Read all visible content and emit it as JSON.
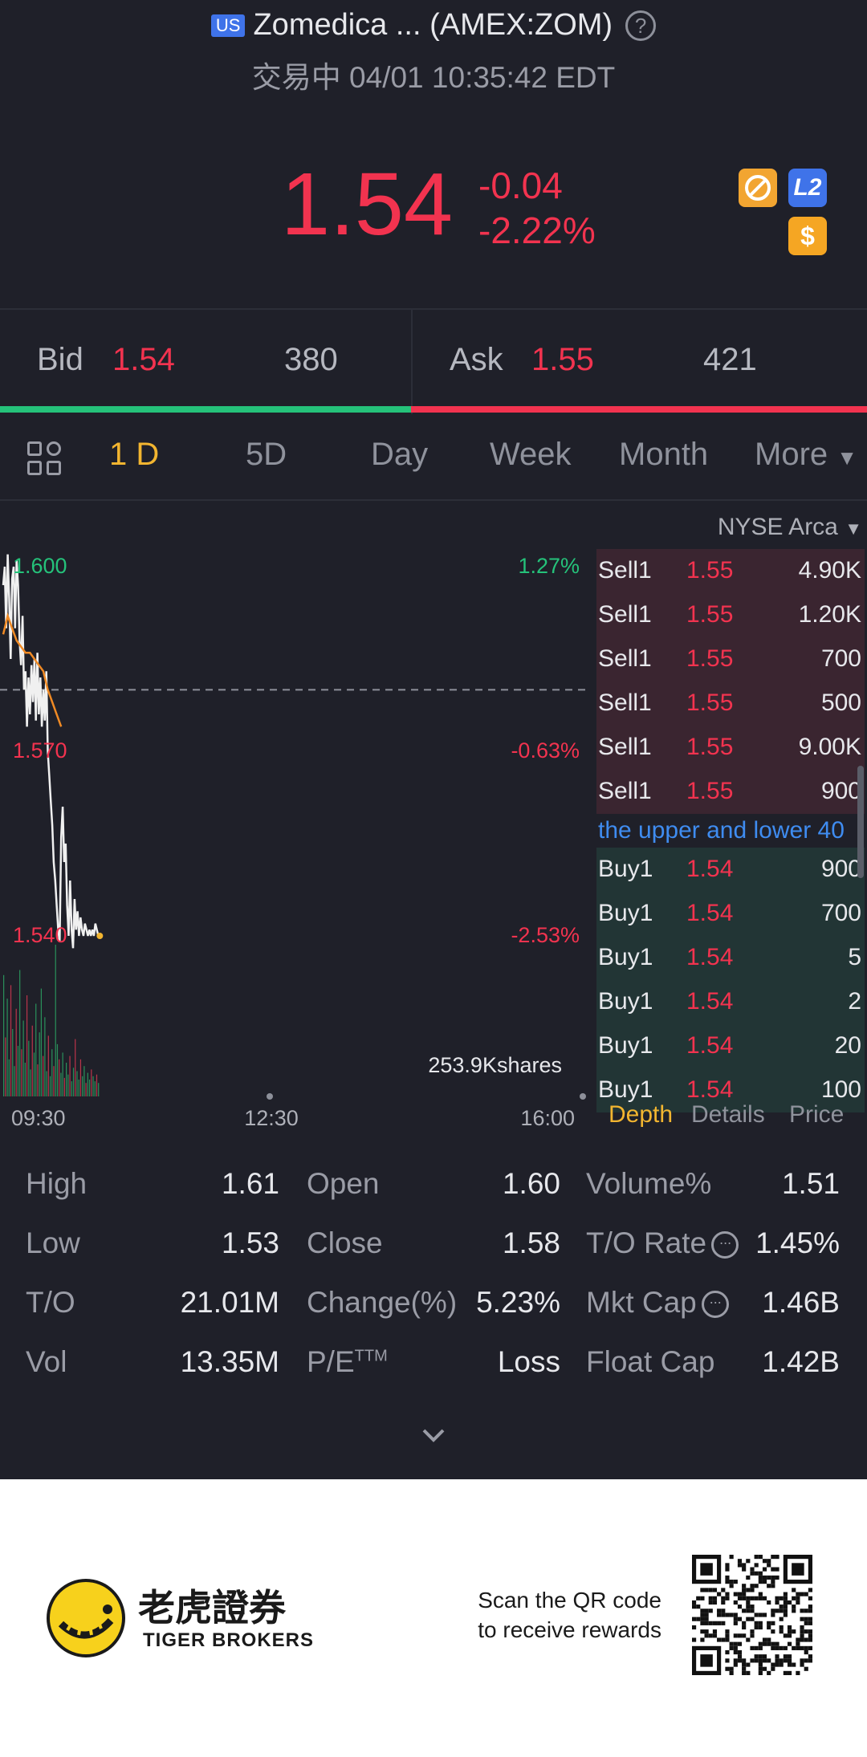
{
  "header": {
    "market_badge": "US",
    "title": "Zomedica ... (AMEX:ZOM)",
    "help_icon": "?",
    "status_line": "交易中 04/01 10:35:42 EDT"
  },
  "quote": {
    "price": "1.54",
    "change": "-0.04",
    "change_pct": "-2.22%",
    "icons": [
      "no-fee-icon",
      "level2-icon",
      "dollar-icon"
    ],
    "level2_label": "L2",
    "dollar_label": "$"
  },
  "bid_ask": {
    "bid_label": "Bid",
    "bid_price": "1.54",
    "bid_size": "380",
    "ask_label": "Ask",
    "ask_price": "1.55",
    "ask_size": "421",
    "bid_share": 0.474
  },
  "period_tabs": [
    "1 D",
    "5D",
    "Day",
    "Week",
    "Month",
    "More"
  ],
  "active_tab": "1 D",
  "chart": {
    "price_labels": [
      "1.600",
      "1.570",
      "1.540"
    ],
    "pct_labels": [
      "1.27%",
      "-0.63%",
      "-2.53%"
    ],
    "volume_label": "253.9Kshares",
    "time_labels": [
      "09:30",
      "12:30",
      "16:00"
    ],
    "last_price": 1.54
  },
  "chart_data": {
    "type": "line",
    "title": "",
    "x_label": "",
    "y_label": "",
    "ylim": [
      1.54,
      1.6
    ],
    "x_range": [
      "09:30",
      "16:00"
    ],
    "series": [
      {
        "name": "",
        "x": [
          "09:30",
          "09:31",
          "09:32",
          "09:33",
          "09:34",
          "09:35",
          "09:36",
          "09:37",
          "09:38",
          "09:39",
          "09:40",
          "09:41",
          "09:42",
          "09:43",
          "09:44",
          "09:45",
          "09:46",
          "09:47",
          "09:48",
          "09:49",
          "09:50",
          "09:51",
          "09:52",
          "09:53",
          "09:54",
          "09:55",
          "09:56",
          "09:57",
          "09:58",
          "09:59",
          "10:00",
          "10:01",
          "10:02",
          "10:03",
          "10:04",
          "10:05",
          "10:06",
          "10:07",
          "10:08",
          "10:09",
          "10:10",
          "10:11",
          "10:12",
          "10:13",
          "10:14",
          "10:15",
          "10:16",
          "10:17",
          "10:18",
          "10:19",
          "10:20",
          "10:21",
          "10:22",
          "10:23",
          "10:24",
          "10:25",
          "10:26",
          "10:27",
          "10:28",
          "10:29",
          "10:30",
          "10:31",
          "10:32",
          "10:33",
          "10:34",
          "10:35"
        ],
        "values": [
          1.597,
          1.6,
          1.59,
          1.602,
          1.595,
          1.585,
          1.598,
          1.6,
          1.59,
          1.601,
          1.597,
          1.588,
          1.584,
          1.592,
          1.58,
          1.583,
          1.574,
          1.582,
          1.576,
          1.584,
          1.578,
          1.585,
          1.575,
          1.586,
          1.576,
          1.582,
          1.574,
          1.58,
          1.575,
          1.583,
          1.57,
          1.566,
          1.562,
          1.558,
          1.552,
          1.549,
          1.545,
          1.541,
          1.539,
          1.556,
          1.561,
          1.552,
          1.555,
          1.545,
          1.54,
          1.549,
          1.541,
          1.538,
          1.546,
          1.541,
          1.544,
          1.54,
          1.543,
          1.541,
          1.54,
          1.542,
          1.541,
          1.54,
          1.541,
          1.54,
          1.541,
          1.54,
          1.542,
          1.541,
          1.54,
          1.54
        ]
      },
      {
        "name": "",
        "x": [
          "09:30",
          "09:33",
          "09:36",
          "09:39",
          "09:42",
          "09:45",
          "09:48",
          "09:51",
          "09:54",
          "09:57",
          "10:00",
          "10:03",
          "10:06",
          "10:09"
        ],
        "values": [
          1.589,
          1.592,
          1.59,
          1.588,
          1.587,
          1.586,
          1.586,
          1.585,
          1.584,
          1.583,
          1.58,
          1.578,
          1.576,
          1.574
        ]
      }
    ],
    "reference_line": 1.58,
    "volume_bars": [
      0.72,
      0.35,
      0.58,
      0.22,
      0.66,
      0.4,
      0.18,
      0.52,
      0.3,
      0.75,
      0.28,
      0.45,
      0.2,
      0.6,
      0.33,
      0.16,
      0.42,
      0.26,
      0.55,
      0.19,
      0.38,
      0.64,
      0.24,
      0.47,
      0.15,
      0.36,
      0.12,
      0.28,
      0.18,
      0.9,
      0.31,
      0.22,
      0.14,
      0.26,
      0.11,
      0.2,
      0.13,
      0.24,
      0.09,
      0.17,
      0.34,
      0.15,
      0.1,
      0.22,
      0.12,
      0.18,
      0.08,
      0.14,
      0.1,
      0.16,
      0.12,
      0.09,
      0.13,
      0.08
    ],
    "grid": false
  },
  "orderbook": {
    "exchange": "NYSE Arca",
    "sells": [
      {
        "label": "Sell1",
        "price": "1.55",
        "size": "4.90K"
      },
      {
        "label": "Sell1",
        "price": "1.55",
        "size": "1.20K"
      },
      {
        "label": "Sell1",
        "price": "1.55",
        "size": "700"
      },
      {
        "label": "Sell1",
        "price": "1.55",
        "size": "500"
      },
      {
        "label": "Sell1",
        "price": "1.55",
        "size": "9.00K"
      },
      {
        "label": "Sell1",
        "price": "1.55",
        "size": "900"
      }
    ],
    "banner": "the upper and lower 40",
    "buys": [
      {
        "label": "Buy1",
        "price": "1.54",
        "size": "900"
      },
      {
        "label": "Buy1",
        "price": "1.54",
        "size": "700"
      },
      {
        "label": "Buy1",
        "price": "1.54",
        "size": "5"
      },
      {
        "label": "Buy1",
        "price": "1.54",
        "size": "2"
      },
      {
        "label": "Buy1",
        "price": "1.54",
        "size": "20"
      },
      {
        "label": "Buy1",
        "price": "1.54",
        "size": "100"
      }
    ],
    "tabs": [
      "Depth",
      "Details",
      "Price"
    ],
    "active_tab": "Depth"
  },
  "stats": {
    "high_label": "High",
    "high": "1.61",
    "low_label": "Low",
    "low": "1.53",
    "to_label": "T/O",
    "to": "21.01M",
    "vol_label": "Vol",
    "vol": "13.35M",
    "open_label": "Open",
    "open": "1.60",
    "close_label": "Close",
    "close": "1.58",
    "change_label": "Change(%)",
    "change": "5.23%",
    "pe_label": "P/E",
    "pe_sup": "TTM",
    "pe": "Loss",
    "volpct_label": "Volume%",
    "volpct": "1.51",
    "torate_label": "T/O Rate",
    "torate": "1.45%",
    "mktcap_label": "Mkt Cap",
    "mktcap": "1.46B",
    "floatcap_label": "Float Cap",
    "floatcap": "1.42B",
    "info_glyph": "···"
  },
  "footer": {
    "brand_cn": "老虎證券",
    "brand_en": "TIGER BROKERS",
    "scan_line1": "Scan the QR code",
    "scan_line2": "to receive rewards"
  },
  "colors": {
    "background": "#1f2029",
    "down": "#f2334f",
    "up": "#25c27a",
    "accent": "#f2b530",
    "link": "#3f8cf0"
  }
}
